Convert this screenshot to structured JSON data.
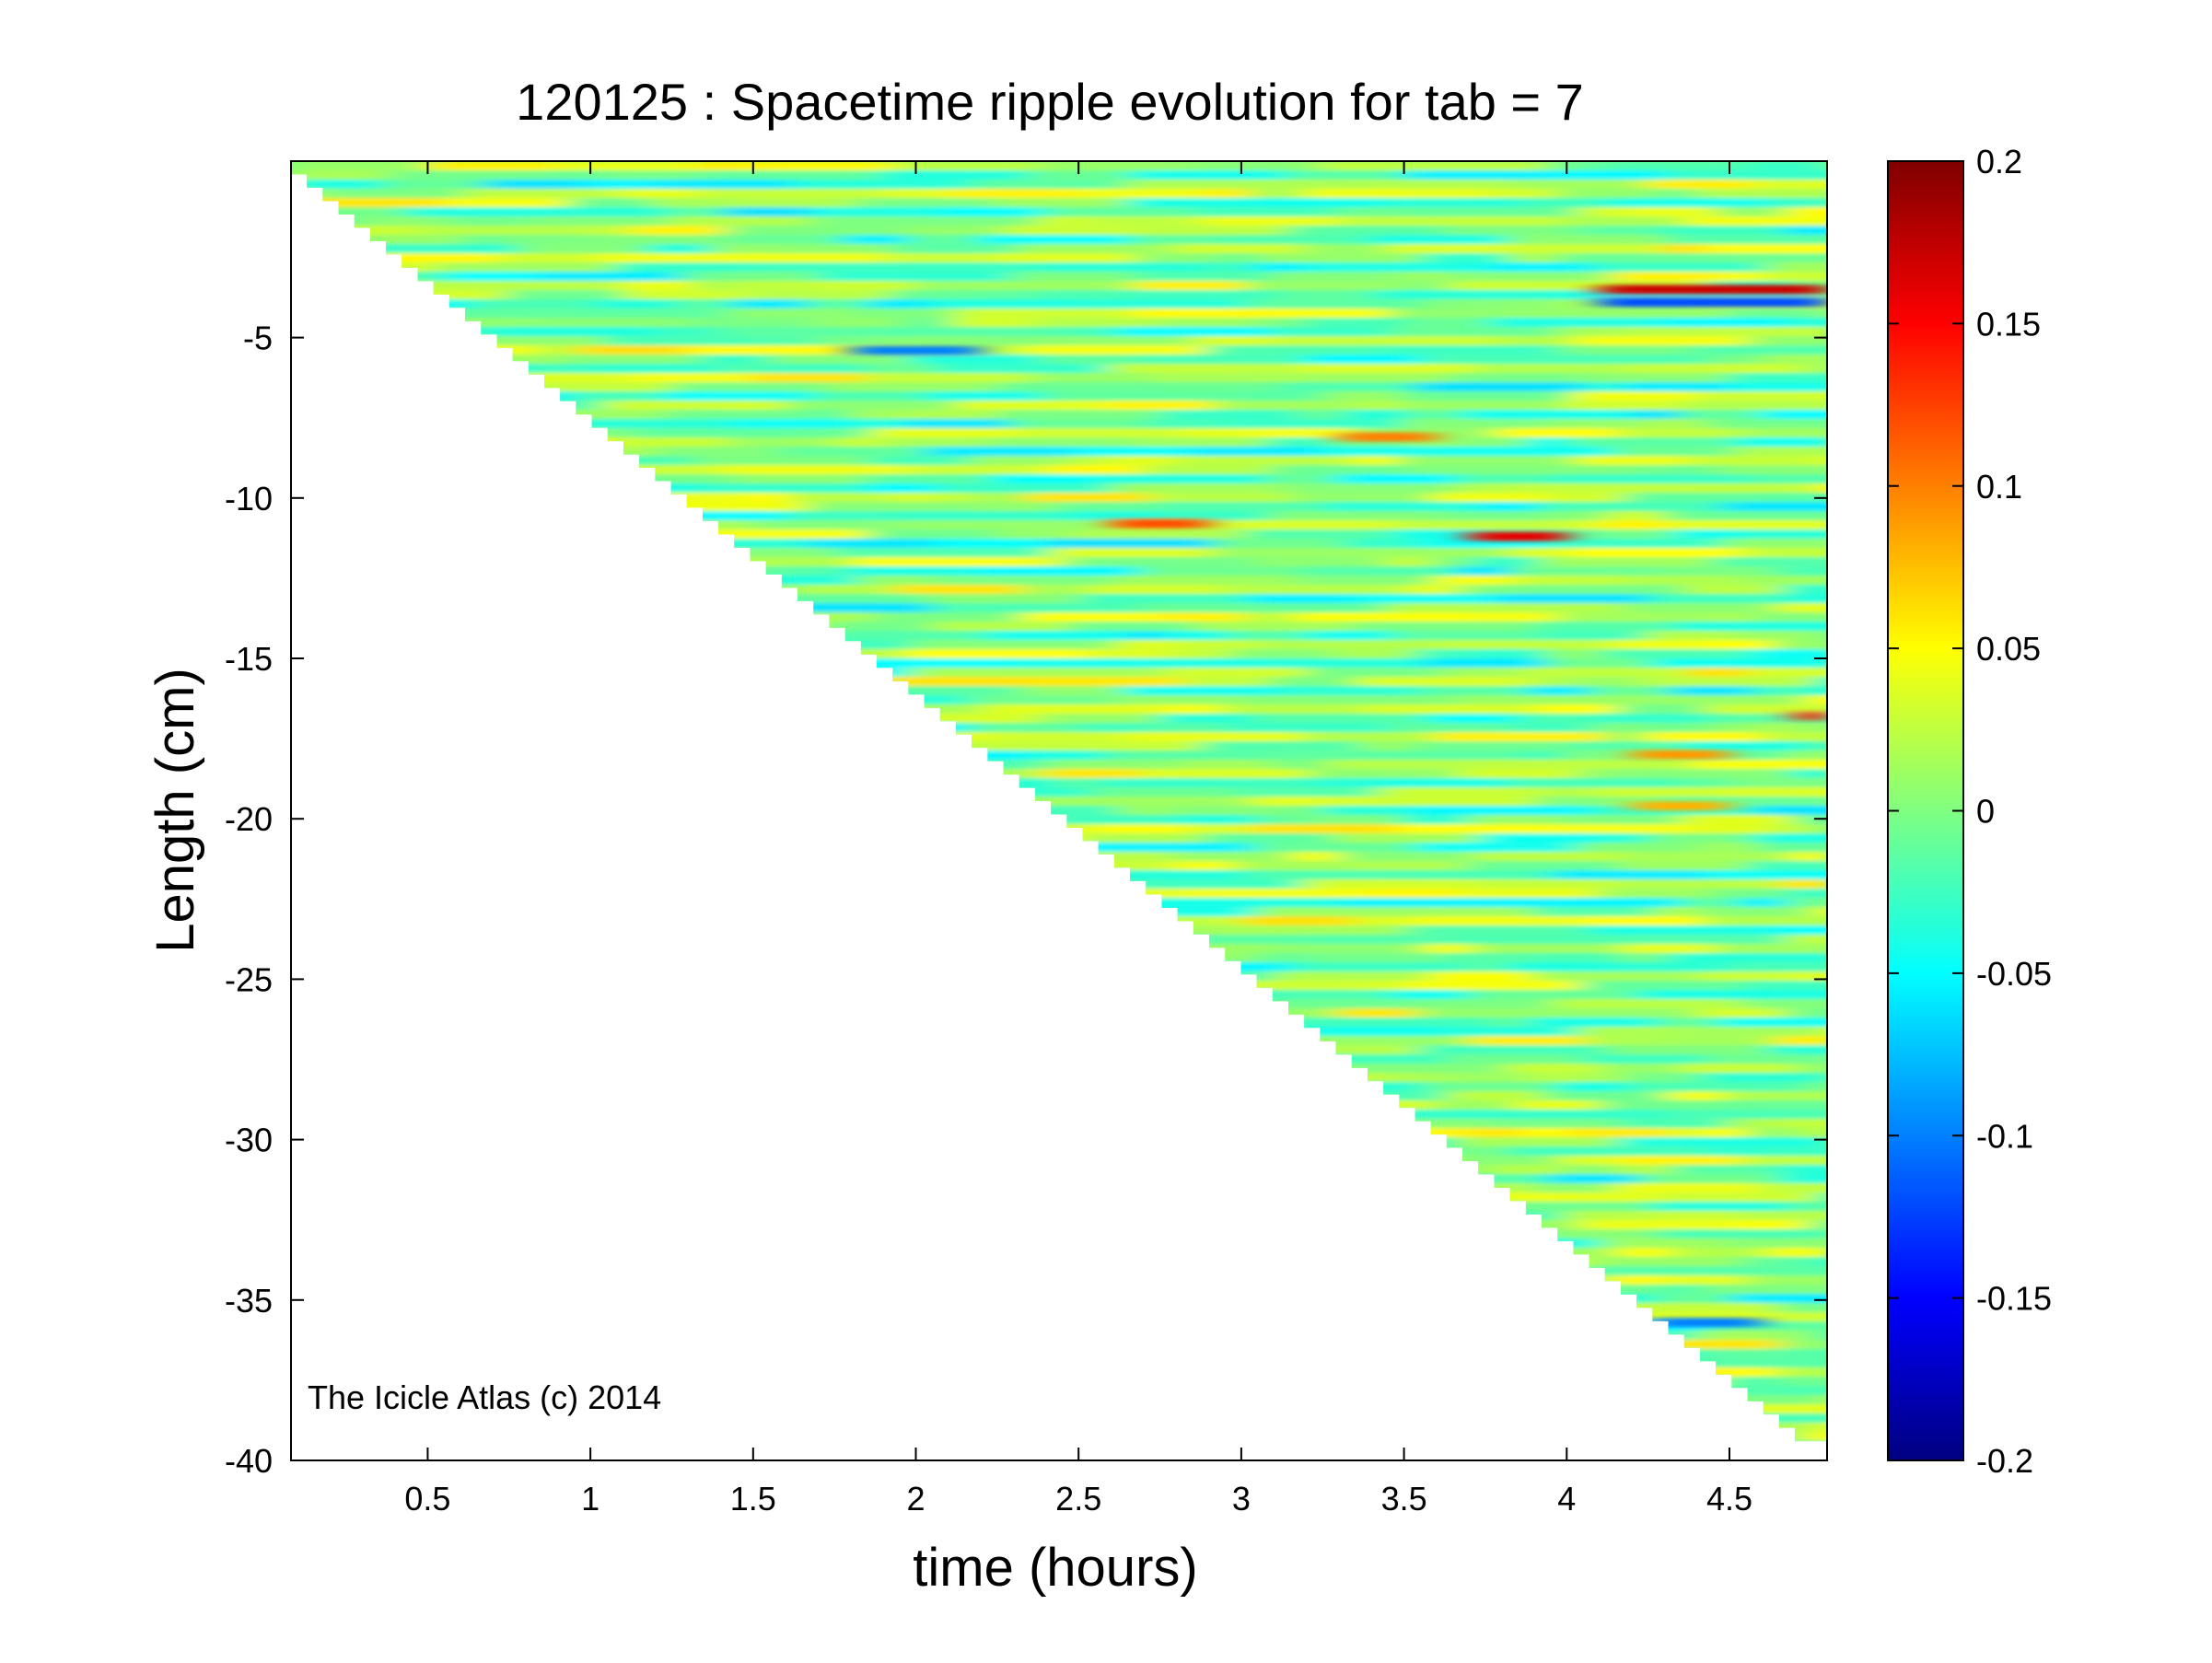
{
  "chart_data": {
    "type": "heatmap",
    "title": "120125 : Spacetime ripple evolution for tab = 7",
    "xlabel": "time (hours)",
    "ylabel": "Length (cm)",
    "xlim": [
      0.08,
      4.8
    ],
    "ylim": [
      -40,
      0.5
    ],
    "x_ticks": [
      "0.5",
      "1",
      "1.5",
      "2",
      "2.5",
      "3",
      "3.5",
      "4",
      "4.5"
    ],
    "x_tick_values": [
      0.5,
      1,
      1.5,
      2,
      2.5,
      3,
      3.5,
      4,
      4.5
    ],
    "y_ticks": [
      "-5",
      "-10",
      "-15",
      "-20",
      "-25",
      "-30",
      "-35",
      "-40"
    ],
    "y_tick_values": [
      -5,
      -10,
      -15,
      -20,
      -25,
      -30,
      -35,
      -40
    ],
    "colorbar": {
      "min": -0.2,
      "max": 0.2,
      "colormap": "jet",
      "ticks": [
        "0.2",
        "0.15",
        "0.1",
        "0.05",
        "0",
        "-0.05",
        "-0.1",
        "-0.15",
        "-0.2"
      ],
      "tick_values": [
        0.2,
        0.15,
        0.1,
        0.05,
        0,
        -0.05,
        -0.1,
        -0.15,
        -0.2
      ]
    },
    "data_boundary": {
      "description_points_x": [
        0.08,
        4.75
      ],
      "description_points_y": [
        0.5,
        -39.4
      ]
    },
    "features": [
      {
        "t_start": 4.1,
        "t_end": 4.8,
        "length": -3.5,
        "value": 0.17
      },
      {
        "t_start": 4.1,
        "t_end": 4.8,
        "length": -3.9,
        "value": -0.12
      },
      {
        "t_start": 2.6,
        "t_end": 2.9,
        "length": -10.8,
        "value": 0.12
      },
      {
        "t_start": 3.7,
        "t_end": 4.0,
        "length": -11.2,
        "value": 0.16
      },
      {
        "t_start": 3.3,
        "t_end": 3.6,
        "length": -8.1,
        "value": 0.1
      },
      {
        "t_start": 1.8,
        "t_end": 2.2,
        "length": -5.4,
        "value": -0.1
      },
      {
        "t_start": 4.2,
        "t_end": 4.5,
        "length": -18.0,
        "value": 0.09
      },
      {
        "t_start": 4.2,
        "t_end": 4.5,
        "length": -19.6,
        "value": 0.08
      },
      {
        "t_start": 4.25,
        "t_end": 4.6,
        "length": -35.7,
        "value": -0.1
      },
      {
        "t_start": 4.7,
        "t_end": 4.8,
        "length": -16.8,
        "value": 0.14
      }
    ],
    "grid": false,
    "legend": "colorbar-right"
  },
  "annotation": "The Icicle Atlas (c) 2014"
}
